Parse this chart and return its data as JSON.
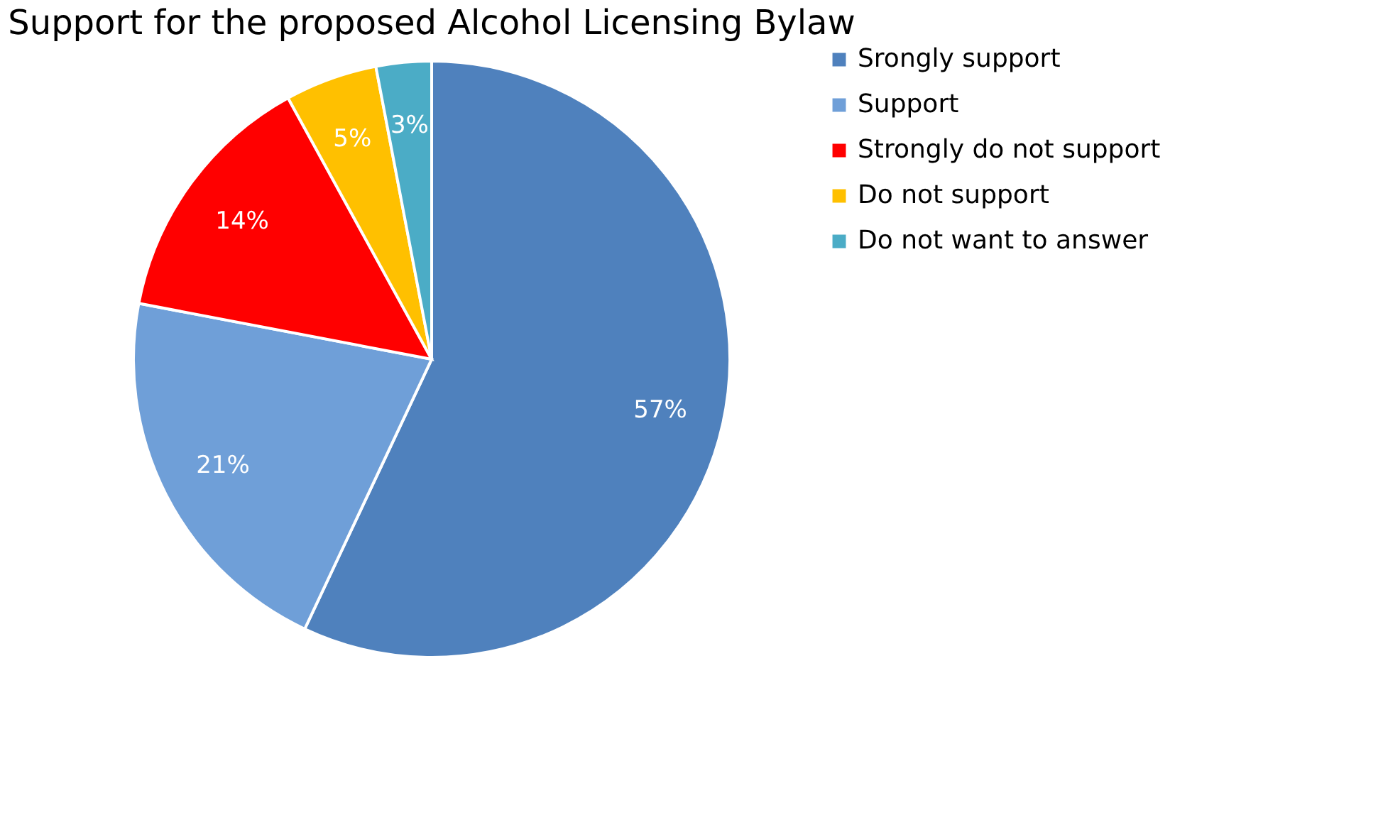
{
  "chart_data": {
    "type": "pie",
    "title": "Support for the proposed Alcohol Licensing Bylaw",
    "categories": [
      "Srongly support",
      "Support",
      "Strongly do not support",
      "Do not support",
      "Do not want to answer"
    ],
    "values": [
      57,
      21,
      14,
      5,
      3
    ],
    "colors": [
      "#4f81bd",
      "#6f9fd8",
      "#ff0000",
      "#ffc000",
      "#4bacc6"
    ],
    "value_labels": [
      "57%",
      "21%",
      "14%",
      "5%",
      "3%"
    ],
    "legend": "right"
  }
}
